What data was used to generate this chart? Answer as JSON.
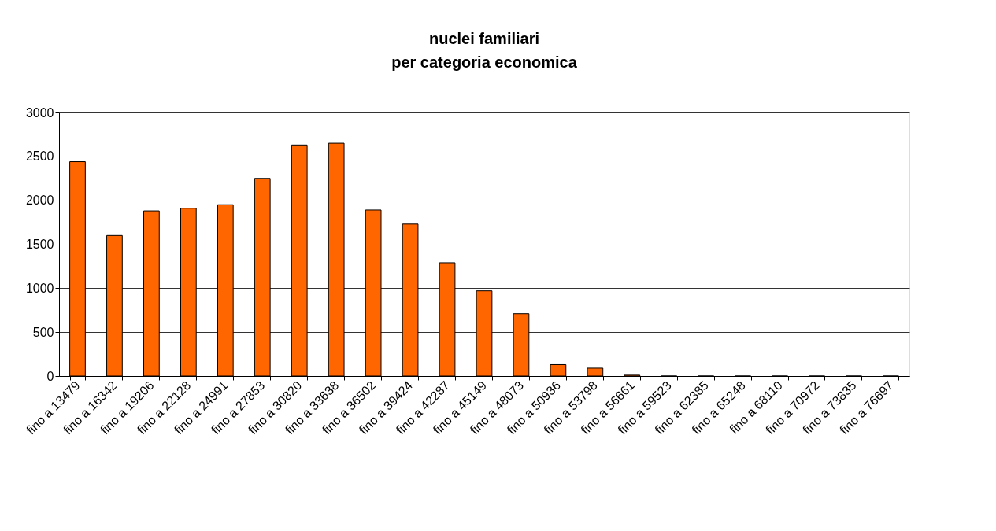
{
  "chart_data": {
    "type": "bar",
    "title": [
      "nuclei familiari",
      "per categoria economica"
    ],
    "categories": [
      "fino a 13479",
      "fino a 16342",
      "fino a 19206",
      "fino a 22128",
      "fino a 24991",
      "fino a 27853",
      "fino a 30820",
      "fino a 33638",
      "fino a 36502",
      "fino a 39424",
      "fino a 42287",
      "fino a 45149",
      "fino a 48073",
      "fino a 50936",
      "fino a 53798",
      "fino a 56661",
      "fino a 59523",
      "fino a 62385",
      "fino a 65248",
      "fino a 68110",
      "fino a 70972",
      "fino a 73835",
      "fino a 76697"
    ],
    "values": [
      2440,
      1600,
      1880,
      1910,
      1950,
      2250,
      2630,
      2650,
      1890,
      1730,
      1290,
      970,
      710,
      130,
      90,
      10,
      0,
      0,
      0,
      0,
      0,
      0,
      0
    ],
    "color": "#ff6600",
    "ylim": [
      0,
      3000
    ],
    "yticks": [
      0,
      500,
      1000,
      1500,
      2000,
      2500,
      3000
    ],
    "grid": "y"
  }
}
